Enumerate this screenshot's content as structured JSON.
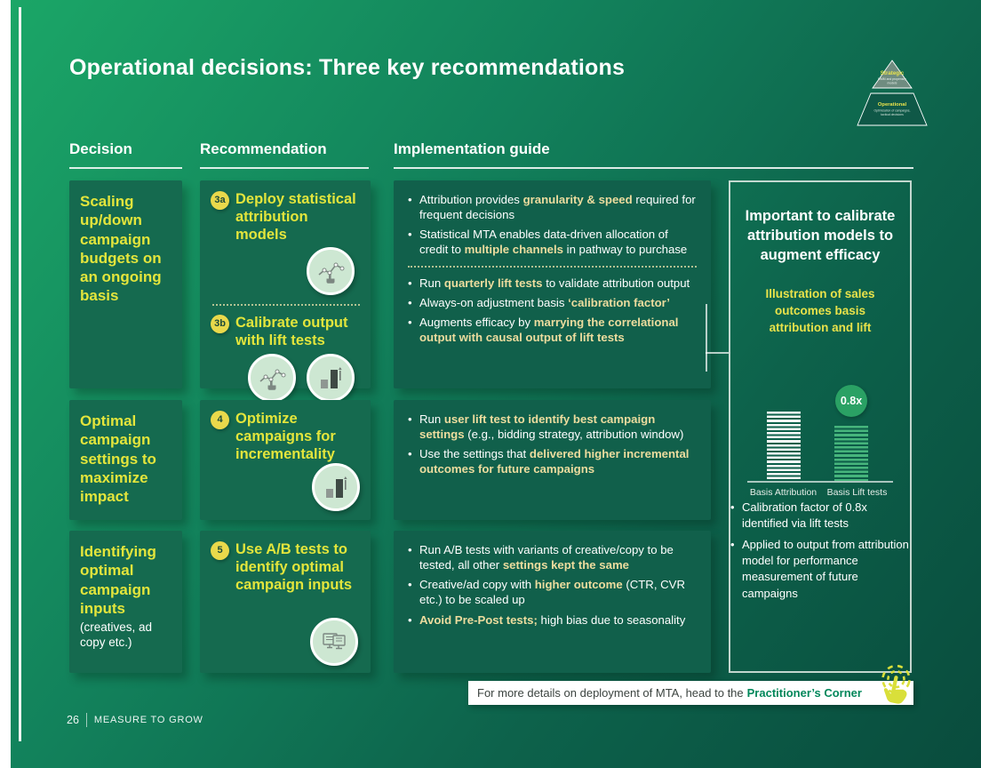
{
  "slide": {
    "title": "Operational decisions: Three key recommendations",
    "page_number": "26",
    "footer_brand": "MEASURE TO GROW",
    "pyramid": {
      "top_label": "Strategic",
      "top_sub_line1": "MMM and propensity",
      "top_sub_line2": "models",
      "bottom_label": "Operational",
      "bottom_sub_line1": "Optimization of campaigns,",
      "bottom_sub_line2": "tactical decisions"
    },
    "column_headers": {
      "decision": "Decision",
      "recommendation": "Recommendation",
      "implementation": "Implementation guide"
    },
    "rows": [
      {
        "decision": {
          "title": "Scaling up/down campaign budgets on an ongoing basis",
          "subtitle": ""
        },
        "recommendations": [
          {
            "badge": "3a",
            "title": "Deploy statistical attribution models",
            "icons": [
              "chart-hand-icon"
            ]
          },
          {
            "badge": "3b",
            "title": "Calibrate output with lift tests",
            "icons": [
              "chart-hand-icon",
              "bar-chart-icon"
            ]
          }
        ],
        "impl_blocks": [
          [
            [
              {
                "t": "Attribution provides "
              },
              {
                "t": "granularity & speed",
                "b": true
              },
              {
                "t": " required for frequent decisions"
              }
            ],
            [
              {
                "t": "Statistical MTA enables data-driven allocation of credit to "
              },
              {
                "t": "multiple channels",
                "b": true
              },
              {
                "t": " in pathway to purchase"
              }
            ]
          ],
          [
            [
              {
                "t": "Run "
              },
              {
                "t": "quarterly lift tests",
                "b": true
              },
              {
                "t": " to validate attribution output"
              }
            ],
            [
              {
                "t": "Always-on adjustment basis "
              },
              {
                "t": "‘calibration factor’",
                "b": true
              }
            ],
            [
              {
                "t": "Augments efficacy by "
              },
              {
                "t": "marrying the correlational output with causal output of lift tests",
                "b": true
              }
            ]
          ]
        ]
      },
      {
        "decision": {
          "title": "Optimal campaign settings to maximize impact",
          "subtitle": ""
        },
        "recommendations": [
          {
            "badge": "4",
            "title": "Optimize campaigns for incrementality",
            "icons": [
              "bar-chart-icon"
            ]
          }
        ],
        "impl_blocks": [
          [
            [
              {
                "t": "Run "
              },
              {
                "t": "user lift test to identify best campaign settings",
                "b": true
              },
              {
                "t": " (e.g., bidding strategy, attribution window)"
              }
            ],
            [
              {
                "t": "Use the settings that "
              },
              {
                "t": "delivered higher incremental outcomes for future campaigns",
                "b": true
              }
            ]
          ]
        ]
      },
      {
        "decision": {
          "title": "Identifying optimal campaign inputs",
          "subtitle": "(creatives, ad copy etc.)"
        },
        "recommendations": [
          {
            "badge": "5",
            "title": "Use A/B tests to identify optimal campaign inputs",
            "icons": [
              "ab-test-screens-icon"
            ]
          }
        ],
        "impl_blocks": [
          [
            [
              {
                "t": "Run A/B tests with variants of creative/copy to be tested, all other "
              },
              {
                "t": "settings kept the same",
                "b": true
              }
            ],
            [
              {
                "t": "Creative/ad copy with "
              },
              {
                "t": "higher outcome",
                "b": true
              },
              {
                "t": " (CTR, CVR etc.) to be scaled up"
              }
            ],
            [
              {
                "t": "Avoid Pre-Post tests;",
                "b": true
              },
              {
                "t": " high bias due to seasonality"
              }
            ]
          ]
        ]
      }
    ],
    "side_panel": {
      "heading": "Important to calibrate attribution models to augment efficacy",
      "subheading": "Illustration of sales outcomes basis attribution and lift",
      "bullets": [
        [
          {
            "t": "Calibration factor of 0.8x identified via lift tests"
          }
        ],
        [
          {
            "t": "Applied to output from attribution model for performance measurement of future campaigns"
          }
        ]
      ]
    },
    "footer_bar": {
      "text_prefix": "For more details on deployment of MTA, head to the",
      "link_label": "Practitioner’s Corner"
    },
    "colors": {
      "accent_yellow": "#e3e53c",
      "highlight_cream": "#ecdc9e",
      "card_green": "#156a4f",
      "impl_card_green": "#11604b",
      "badge_yellow": "#e9d94b",
      "link_green": "#00875a",
      "bar_green": "#46b57c",
      "annotation_circle_green": "#2aa164"
    }
  },
  "chart_data": {
    "type": "bar",
    "title": "Illustration of sales outcomes basis attribution and lift",
    "categories": [
      "Basis Attribution",
      "Basis Lift tests"
    ],
    "values": [
      1.0,
      0.8
    ],
    "annotation": "0.8x",
    "unit": "sales outcome indexed to attribution = 1.0",
    "bar_colors": [
      "#ffffff",
      "#46b57c"
    ],
    "legend": false,
    "grid": false,
    "ylim": [
      0,
      1.1
    ]
  }
}
